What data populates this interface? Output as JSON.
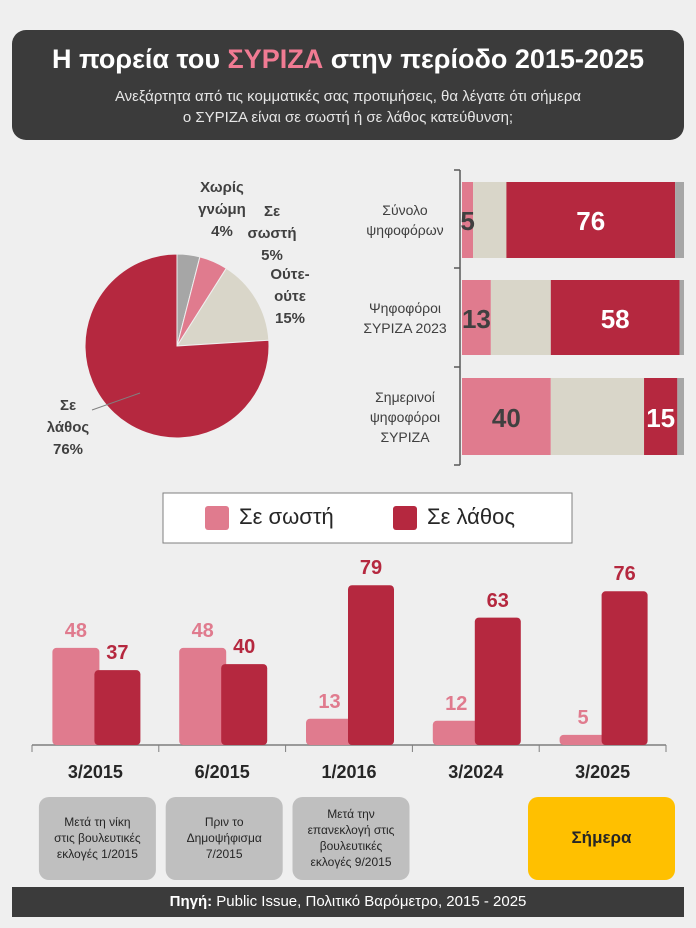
{
  "header": {
    "title": [
      "Η πορεία του ",
      "ΣΥΡΙΖΑ",
      " στην περίοδο 2015-2025"
    ],
    "title_highlight_color": "#f07b93",
    "subtitle": [
      "Ανεξάρτητα από τις κομματικές σας προτιμήσεις, θα λέγατε ότι σήμερα",
      "ο ΣΥΡΙΖΑ είναι σε σωστή ή σε λάθος κατεύθυνση;"
    ]
  },
  "chart_data": [
    {
      "type": "pie",
      "categories": [
        "Χωρίς\nγνώμη",
        "Σε\nσωστή",
        "Ούτε-\nούτε",
        "Σε\nλάθος"
      ],
      "values": [
        4,
        5,
        15,
        76
      ],
      "value_labels": [
        "4%",
        "5%",
        "15%",
        "76%"
      ],
      "colors": [
        "#a6a6a6",
        "#e07b8e",
        "#d9d6c9",
        "#b5283f"
      ]
    },
    {
      "type": "stacked-bar-horizontal",
      "categories": [
        "Σύνολο\nψηφοφόρων",
        "Ψηφοφόροι\nΣΥΡΙΖΑ 2023",
        "Σημερινοί\nψηφοφόροι\nΣΥΡΙΖΑ"
      ],
      "xlim": [
        0,
        100
      ],
      "series": [
        {
          "name": "Σε σωστή",
          "color": "#e07b8e",
          "values": [
            5,
            13,
            40
          ],
          "show_labels": true,
          "label_color": "#404040"
        },
        {
          "name": "Ούτε-ούτε",
          "color": "#d9d6c9",
          "values": [
            15,
            27,
            42
          ],
          "show_labels": false
        },
        {
          "name": "Σε λάθος",
          "color": "#b5283f",
          "values": [
            76,
            58,
            15
          ],
          "show_labels": true,
          "label_color": "#ffffff"
        },
        {
          "name": "Χωρίς γνώμη",
          "color": "#a6a6a6",
          "values": [
            4,
            2,
            3
          ],
          "show_labels": false
        }
      ]
    },
    {
      "type": "grouped-bar",
      "categories": [
        "3/2015",
        "6/2015",
        "1/2016",
        "3/2024",
        "3/2025"
      ],
      "ylim": [
        0,
        90
      ],
      "series": [
        {
          "name": "Σε σωστή",
          "color": "#e07b8e",
          "values": [
            48,
            48,
            13,
            12,
            5
          ]
        },
        {
          "name": "Σε λάθος",
          "color": "#b5283f",
          "values": [
            37,
            40,
            79,
            63,
            76
          ]
        }
      ],
      "notes": [
        {
          "text": "Μετά τη νίκη\nστις βουλευτικές\nεκλογές 1/2015",
          "color": "#bfbfbf"
        },
        {
          "text": "Πριν το\nΔημοψήφισμα\n7/2015",
          "color": "#bfbfbf"
        },
        {
          "text": "Μετά την\nεπανεκλογή στις\nβουλευτικές\nεκλογές 9/2015",
          "color": "#bfbfbf"
        },
        null,
        {
          "text": "Σήμερα",
          "color": "#ffc000"
        }
      ]
    }
  ],
  "footer": {
    "label": "Πηγή:",
    "text": " Public Issue, Πολιτικό Βαρόμετρο, 2015 - 2025"
  }
}
